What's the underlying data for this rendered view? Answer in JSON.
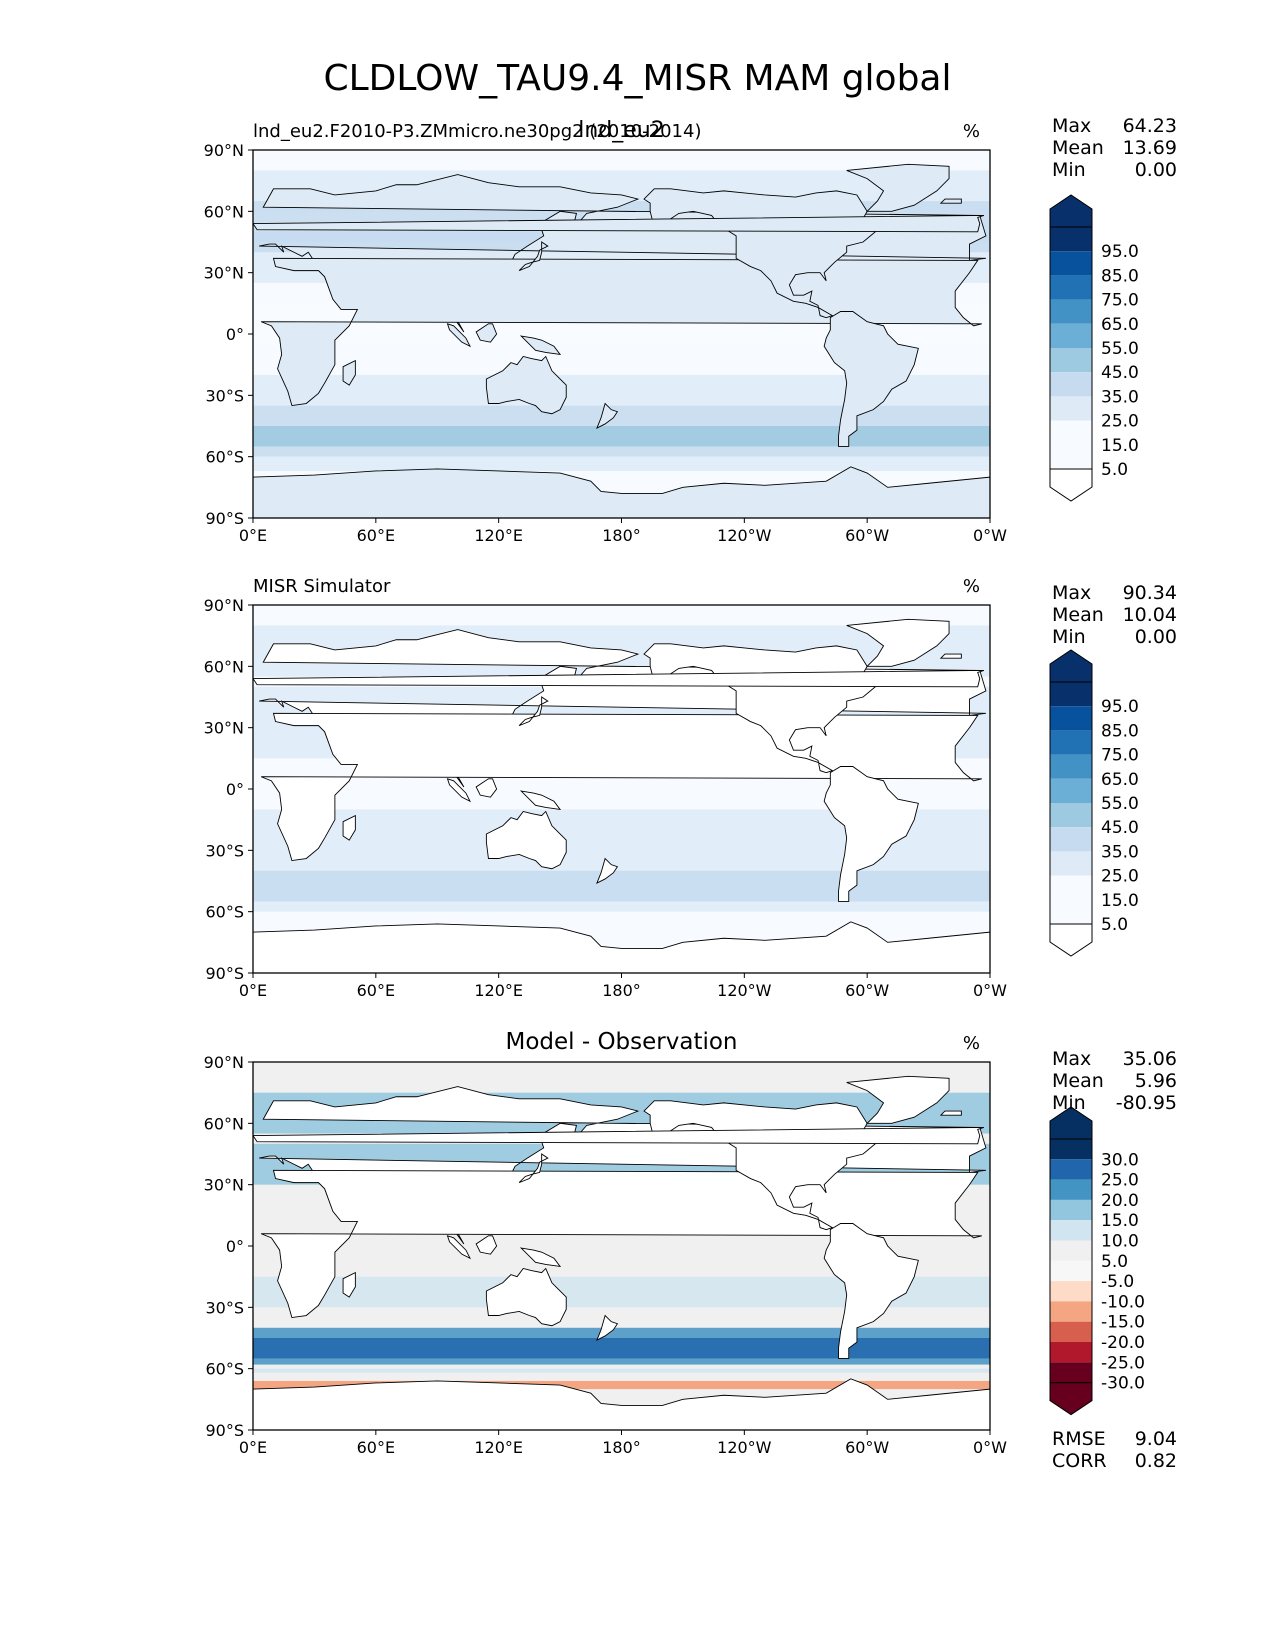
{
  "figure_title": "CLDLOW_TAU9.4_MISR MAM global",
  "colors": {
    "seq": [
      "#f7fbff",
      "#deebf7",
      "#c6dbef",
      "#9ecae1",
      "#6baed6",
      "#4292c6",
      "#2171b5",
      "#08519c",
      "#08306b"
    ],
    "div_blue": [
      "#f0f0f0",
      "#d1e5f0",
      "#92c5de",
      "#4393c3",
      "#2166ac",
      "#053061"
    ],
    "div_red": [
      "#fddbc7",
      "#f4a582",
      "#d6604d",
      "#b2182b",
      "#67001f"
    ],
    "land": "#ffffff",
    "coast": "#000000"
  },
  "axis": {
    "lat_ticks": [
      "90°N",
      "60°N",
      "30°N",
      "0°",
      "30°S",
      "60°S",
      "90°S"
    ],
    "lon_ticks": [
      "0°E",
      "60°E",
      "120°E",
      "180°",
      "120°W",
      "60°W",
      "0°W"
    ]
  },
  "panels": [
    {
      "id": "model",
      "left_title": "lnd_eu2.F2010-P3.ZMmicro.ne30pg2 (2010-2014)",
      "center_title": "lnd_eu2",
      "units": "%",
      "stats": [
        {
          "label": "Max",
          "value": "64.23"
        },
        {
          "label": "Mean",
          "value": "13.69"
        },
        {
          "label": "Min",
          "value": "0.00"
        }
      ],
      "colorbar": {
        "type": "seq",
        "labels": [
          "95.0",
          "85.0",
          "75.0",
          "65.0",
          "55.0",
          "45.0",
          "35.0",
          "25.0",
          "15.0",
          "5.0"
        ]
      }
    },
    {
      "id": "obs",
      "left_title": "MISR Simulator",
      "center_title": "",
      "units": "%",
      "stats": [
        {
          "label": "Max",
          "value": "90.34"
        },
        {
          "label": "Mean",
          "value": "10.04"
        },
        {
          "label": "Min",
          "value": "0.00"
        }
      ],
      "colorbar": {
        "type": "seq",
        "labels": [
          "95.0",
          "85.0",
          "75.0",
          "65.0",
          "55.0",
          "45.0",
          "35.0",
          "25.0",
          "15.0",
          "5.0"
        ]
      }
    },
    {
      "id": "diff",
      "left_title": "",
      "center_title": "Model - Observation",
      "units": "%",
      "stats": [
        {
          "label": "Max",
          "value": "35.06"
        },
        {
          "label": "Mean",
          "value": "5.96"
        },
        {
          "label": "Min",
          "value": "-80.95"
        }
      ],
      "extra_stats": [
        {
          "label": "RMSE",
          "value": "9.04"
        },
        {
          "label": "CORR",
          "value": "0.82"
        }
      ],
      "colorbar": {
        "type": "div",
        "labels": [
          "30.0",
          "25.0",
          "20.0",
          "15.0",
          "10.0",
          "5.0",
          "-5.0",
          "-10.0",
          "-15.0",
          "-20.0",
          "-25.0",
          "-30.0"
        ]
      }
    }
  ],
  "chart_data": {
    "type": "heatmap",
    "title": "CLDLOW_TAU9.4_MISR MAM global",
    "variable": "CLDLOW_TAU9.4_MISR",
    "season": "MAM",
    "region": "global",
    "units": "%",
    "xlabel": "",
    "ylabel": "",
    "xlim": [
      0,
      360
    ],
    "ylim": [
      -90,
      90
    ],
    "x_ticks": [
      "0°E",
      "60°E",
      "120°E",
      "180°",
      "120°W",
      "60°W",
      "0°W"
    ],
    "y_ticks": [
      "90°N",
      "60°N",
      "30°N",
      "0°",
      "30°S",
      "60°S",
      "90°S"
    ],
    "panels": [
      {
        "name": "model",
        "max": 64.23,
        "mean": 13.69,
        "min": 0.0,
        "levels": [
          5,
          15,
          25,
          35,
          45,
          55,
          65,
          75,
          85,
          95
        ]
      },
      {
        "name": "obs",
        "max": 90.34,
        "mean": 10.04,
        "min": 0.0,
        "levels": [
          5,
          15,
          25,
          35,
          45,
          55,
          65,
          75,
          85,
          95
        ]
      },
      {
        "name": "diff",
        "max": 35.06,
        "mean": 5.96,
        "min": -80.95,
        "rmse": 9.04,
        "corr": 0.82,
        "levels": [
          -30,
          -25,
          -20,
          -15,
          -10,
          -5,
          5,
          10,
          15,
          20,
          25,
          30
        ]
      }
    ]
  }
}
